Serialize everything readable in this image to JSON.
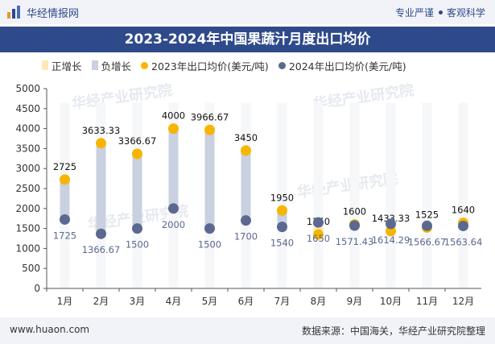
{
  "header": {
    "brand": "华经情报网",
    "tagline_left": "专业严谨",
    "tagline_right": "客观科学"
  },
  "footer": {
    "url": "www.huaon.com",
    "source": "数据来源：中国海关，华经产业研究院整理"
  },
  "watermark": "华经产业研究院",
  "colors": {
    "pos_bar": "#fde9b8",
    "neg_bar": "#c9d0e0",
    "series_2023": "#f7b500",
    "series_2024": "#5b6890",
    "title_bg": "#2e4a8b"
  },
  "chart_data": {
    "type": "bar",
    "title": "2023-2024年中国果蔬汁月度出口均价",
    "categories": [
      "1月",
      "2月",
      "3月",
      "4月",
      "5月",
      "6月",
      "7月",
      "8月",
      "9月",
      "10月",
      "11月",
      "12月"
    ],
    "ylim": [
      0,
      5000
    ],
    "yticks": [
      0,
      500,
      1000,
      1500,
      2000,
      2500,
      3000,
      3500,
      4000,
      4500,
      5000
    ],
    "legend_position": "top",
    "grid": false,
    "legend": [
      "正增长",
      "负增长",
      "2023年出口均价(美元/吨)",
      "2024年出口均价(美元/吨)"
    ],
    "series": [
      {
        "name": "2023年出口均价(美元/吨)",
        "type": "scatter",
        "values": [
          2725,
          3633.33,
          3366.67,
          4000,
          3966.67,
          3450,
          1950,
          1350,
          1600,
          1433.33,
          1525,
          1640
        ],
        "labels": [
          "2725",
          "3633.33",
          "3366.67",
          "4000",
          "3966.67",
          "3450",
          "1950",
          "1350",
          "1600",
          "1433.33",
          "1525",
          "1640"
        ]
      },
      {
        "name": "2024年出口均价(美元/吨)",
        "type": "scatter",
        "values": [
          1725,
          1366.67,
          1500,
          2000,
          1500,
          1700,
          1540,
          1650,
          1571.43,
          1614.29,
          1566.67,
          1563.64
        ],
        "labels": [
          "1725",
          "1366.67",
          "1500",
          "2000",
          "1500",
          "1700",
          "1540",
          "1650",
          "1571.43",
          "1614.29",
          "1566.67",
          "1563.64"
        ]
      }
    ]
  }
}
